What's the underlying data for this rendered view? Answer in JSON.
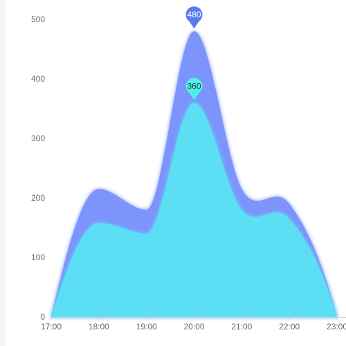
{
  "chart_data": {
    "type": "area",
    "x": [
      "17:00",
      "18:00",
      "19:00",
      "20:00",
      "21:00",
      "22:00",
      "23:00"
    ],
    "ylim": [
      0,
      500
    ],
    "yticks": [
      0,
      100,
      200,
      300,
      400,
      500
    ],
    "grid": false,
    "series": [
      {
        "values": [
          0,
          215,
          180,
          480,
          215,
          190,
          0
        ],
        "color": "#7b94fb"
      },
      {
        "values": [
          0,
          158,
          140,
          360,
          180,
          165,
          0
        ],
        "color": "#5cdef4"
      }
    ],
    "markers": [
      {
        "series": 0,
        "x": "20:00",
        "value": 480,
        "label": "480",
        "color": "#5b7bf0",
        "text_color": "#ffffff"
      },
      {
        "series": 1,
        "x": "20:00",
        "value": 360,
        "label": "360",
        "color": "#4af3e6",
        "text_color": "#333333"
      }
    ]
  }
}
